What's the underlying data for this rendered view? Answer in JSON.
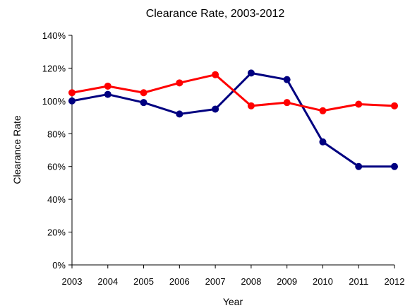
{
  "chart_data": {
    "type": "line",
    "title": "Clearance Rate, 2003-2012",
    "xlabel": "Year",
    "ylabel": "Clearance Rate",
    "categories": [
      "2003",
      "2004",
      "2005",
      "2006",
      "2007",
      "2008",
      "2009",
      "2010",
      "2011",
      "2012"
    ],
    "y_ticks": [
      "0%",
      "20%",
      "40%",
      "60%",
      "80%",
      "100%",
      "120%",
      "140%"
    ],
    "ylim": [
      0,
      140
    ],
    "grid": false,
    "legend": "none",
    "series": [
      {
        "color": "#000080",
        "values": [
          100,
          104,
          99,
          92,
          95,
          117,
          113,
          75,
          60,
          60
        ]
      },
      {
        "color": "#ff0000",
        "values": [
          105,
          109,
          105,
          111,
          116,
          97,
          99,
          94,
          98,
          97
        ]
      }
    ]
  }
}
